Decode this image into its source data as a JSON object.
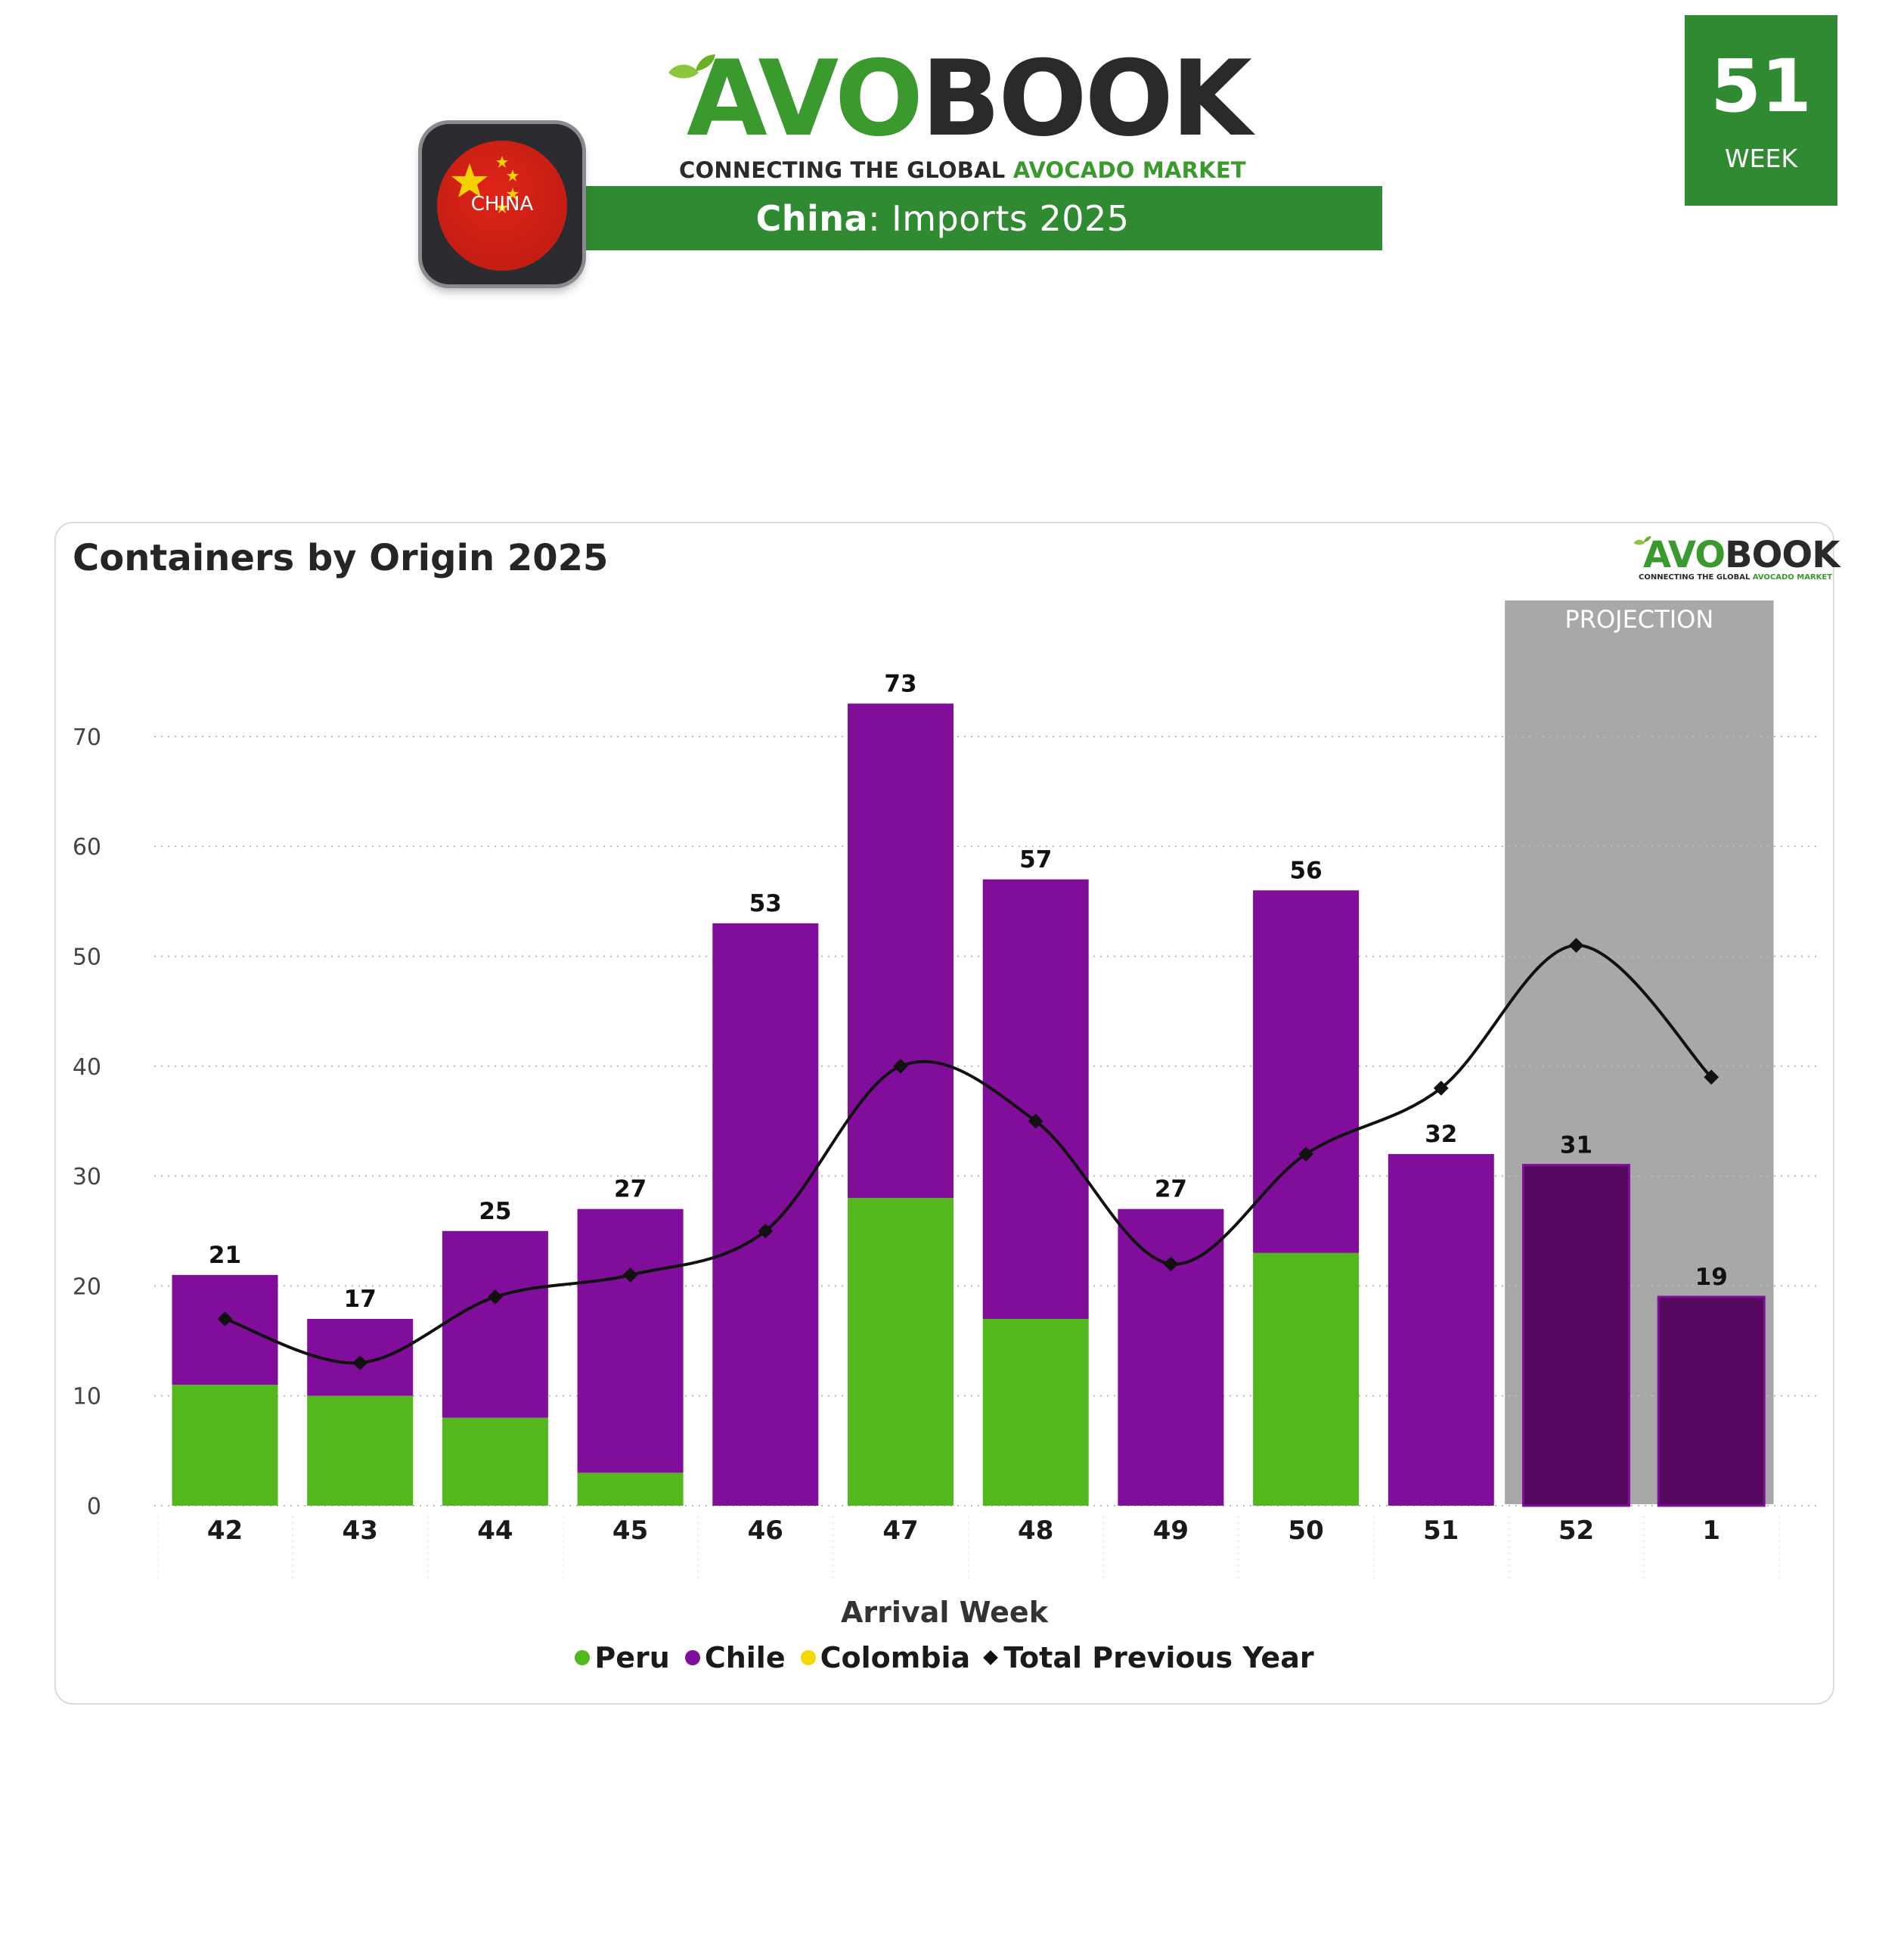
{
  "header": {
    "logo_avo": "AVO",
    "logo_book": "BOOK",
    "tagline_dark": "CONNECTING THE GLOBAL",
    "tagline_green": "AVOCADO MARKET",
    "title_country": "China",
    "title_rest": ": Imports 2025",
    "flag_label": "CHINA",
    "week_number": "51",
    "week_label": "WEEK"
  },
  "colors": {
    "brand_green": "#2f8a31",
    "peru": "#52b81e",
    "chile": "#800e9a",
    "chile_projection": "#560760",
    "colombia": "#f2d900",
    "previous_year": "#111111",
    "projection_band": "#a8a8a8"
  },
  "chart_data": {
    "type": "bar",
    "title": "Containers by Origin 2025",
    "xlabel": "Arrival Week",
    "ylabel": "",
    "ylim": [
      0,
      80
    ],
    "yticks": [
      0,
      10,
      20,
      30,
      40,
      50,
      60,
      70
    ],
    "grid": true,
    "stacked": true,
    "categories": [
      "42",
      "43",
      "44",
      "45",
      "46",
      "47",
      "48",
      "49",
      "50",
      "51",
      "52",
      "1"
    ],
    "series": [
      {
        "name": "Peru",
        "type": "bar",
        "values": [
          11,
          10,
          8,
          3,
          0,
          28,
          17,
          0,
          23,
          0,
          0,
          0
        ]
      },
      {
        "name": "Chile",
        "type": "bar",
        "values": [
          10,
          7,
          17,
          24,
          53,
          45,
          40,
          27,
          33,
          32,
          31,
          19
        ]
      },
      {
        "name": "Colombia",
        "type": "bar",
        "values": [
          0,
          0,
          0,
          0,
          0,
          0,
          0,
          0,
          0,
          0,
          0,
          0
        ]
      },
      {
        "name": "Total Previous Year",
        "type": "line",
        "values": [
          17,
          13,
          19,
          21,
          25,
          40,
          35,
          22,
          32,
          38,
          51,
          39
        ]
      }
    ],
    "totals": [
      21,
      17,
      25,
      27,
      53,
      73,
      57,
      27,
      56,
      32,
      31,
      19
    ],
    "projection": {
      "label": "PROJECTION",
      "categories": [
        "52",
        "1"
      ]
    },
    "legend_position": "bottom-center"
  }
}
